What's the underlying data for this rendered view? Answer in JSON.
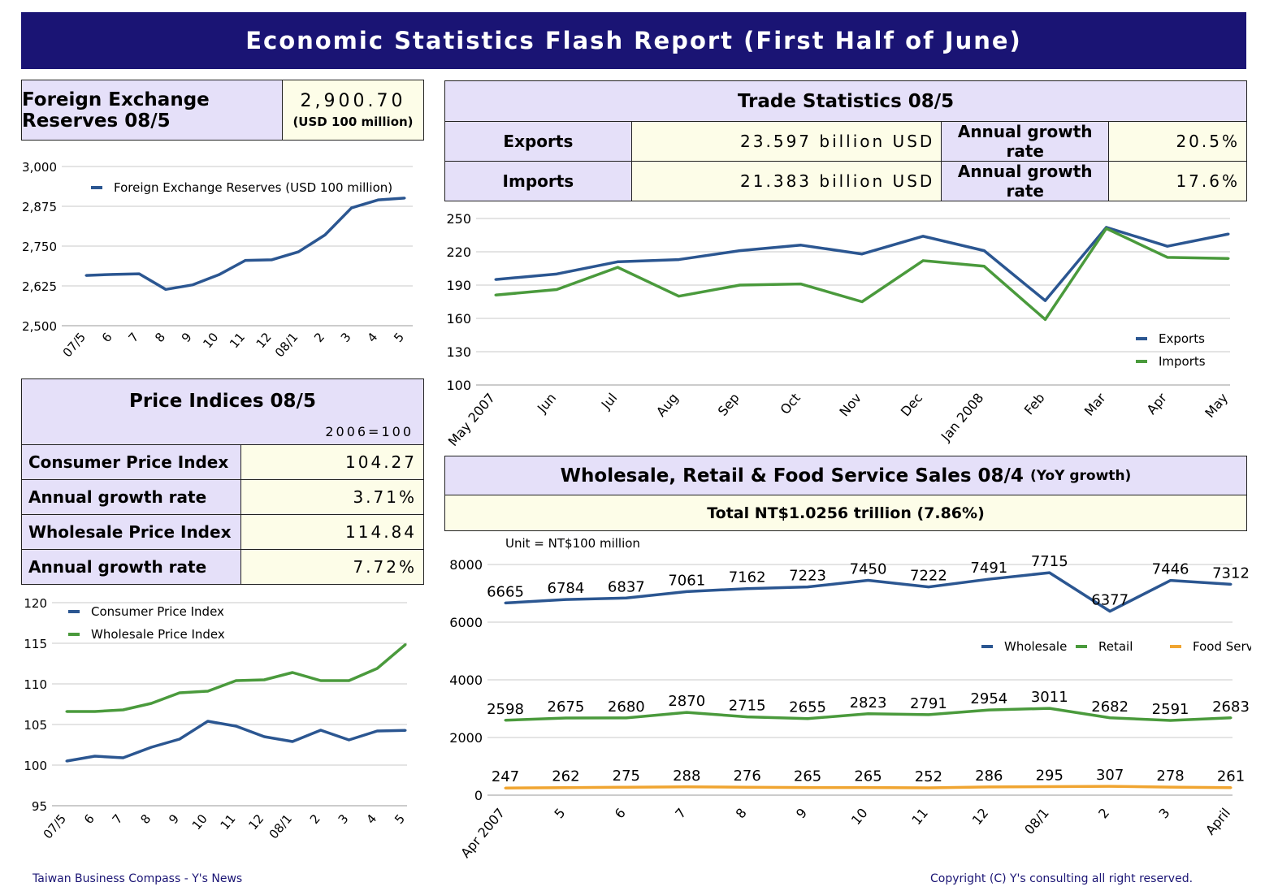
{
  "header": {
    "title": "Economic Statistics Flash Report (First Half of June)"
  },
  "reserves": {
    "title": "Foreign Exchange Reserves 08/5",
    "value": "2,900.70",
    "unit": "(USD 100 million)"
  },
  "trade": {
    "title": "Trade Statistics 08/5",
    "rows": [
      {
        "label": "Exports",
        "value": "23.597 billion USD",
        "rate_label": "Annual growth rate",
        "rate": "20.5%"
      },
      {
        "label": "Imports",
        "value": "21.383 billion USD",
        "rate_label": "Annual growth rate",
        "rate": "17.6%"
      }
    ]
  },
  "prices": {
    "title": "Price Indices 08/5",
    "base": "2006=100",
    "rows": [
      {
        "label": "Consumer Price Index",
        "value": "104.27"
      },
      {
        "label": "Annual growth rate",
        "value": "3.71%"
      },
      {
        "label": "Wholesale Price Index",
        "value": "114.84"
      },
      {
        "label": "Annual growth rate",
        "value": "7.72%"
      }
    ]
  },
  "sales": {
    "title": "Wholesale, Retail & Food Service Sales 08/4",
    "title_note": "(YoY growth)",
    "total": "Total NT$1.0256 trillion (7.86%)",
    "unit_label": "Unit = NT$100 million"
  },
  "footer": {
    "left": "Taiwan Business Compass - Y's News",
    "right": "Copyright (C) Y's consulting all right reserved."
  },
  "colors": {
    "blue": "#2b5691",
    "green": "#4a9a3c",
    "orange": "#f0a531",
    "header": "#1a1474",
    "lavender": "#e5e0f9",
    "cream": "#fdfde8"
  },
  "chart_data": [
    {
      "id": "reserves",
      "type": "line",
      "x": [
        "07/5",
        "6",
        "7",
        "8",
        "9",
        "10",
        "11",
        "12",
        "08/1",
        "2",
        "3",
        "4",
        "5"
      ],
      "series": [
        {
          "name": "Foreign Exchange Reserves (USD 100 million)",
          "color": "#2b5691",
          "values": [
            2658,
            2661,
            2663,
            2614,
            2628,
            2660,
            2705,
            2707,
            2732,
            2785,
            2870,
            2895,
            2900.7
          ]
        }
      ],
      "ylim": [
        2500,
        3000
      ],
      "yticks": [
        "2,500",
        "2,625",
        "2,750",
        "2,875",
        "3,000"
      ],
      "legend": "top-left",
      "grid": true
    },
    {
      "id": "trade",
      "type": "line",
      "x": [
        "May 2007",
        "Jun",
        "Jul",
        "Aug",
        "Sep",
        "Oct",
        "Nov",
        "Dec",
        "Jan 2008",
        "Feb",
        "Mar",
        "Apr",
        "May"
      ],
      "series": [
        {
          "name": "Exports",
          "color": "#2b5691",
          "values": [
            195,
            200,
            211,
            213,
            221,
            226,
            218,
            234,
            221,
            176,
            242,
            225,
            236
          ]
        },
        {
          "name": "Imports",
          "color": "#4a9a3c",
          "values": [
            181,
            186,
            206,
            180,
            190,
            191,
            175,
            212,
            207,
            159,
            241,
            215,
            214
          ]
        }
      ],
      "ylim": [
        100,
        250
      ],
      "yticks": [
        "100",
        "130",
        "160",
        "190",
        "220",
        "250"
      ],
      "legend": "bottom-right",
      "grid": true
    },
    {
      "id": "prices",
      "type": "line",
      "x": [
        "07/5",
        "6",
        "7",
        "8",
        "9",
        "10",
        "11",
        "12",
        "08/1",
        "2",
        "3",
        "4",
        "5"
      ],
      "series": [
        {
          "name": "Consumer Price Index",
          "color": "#2b5691",
          "values": [
            100.5,
            101.1,
            100.9,
            102.2,
            103.2,
            105.4,
            104.8,
            103.5,
            102.9,
            104.3,
            103.1,
            104.2,
            104.27
          ]
        },
        {
          "name": "Wholesale Price Index",
          "color": "#4a9a3c",
          "values": [
            106.6,
            106.6,
            106.8,
            107.6,
            108.9,
            109.1,
            110.4,
            110.5,
            111.4,
            110.4,
            110.4,
            111.9,
            114.84
          ]
        }
      ],
      "ylim": [
        95,
        120
      ],
      "yticks": [
        "95",
        "100",
        "105",
        "110",
        "115",
        "120"
      ],
      "legend": "top-left",
      "grid": true
    },
    {
      "id": "sales",
      "type": "line",
      "x": [
        "Apr 2007",
        "5",
        "6",
        "7",
        "8",
        "9",
        "10",
        "11",
        "12",
        "08/1",
        "2",
        "3",
        "April"
      ],
      "series": [
        {
          "name": "Wholesale",
          "color": "#2b5691",
          "values": [
            6665,
            6784,
            6837,
            7061,
            7162,
            7223,
            7450,
            7222,
            7491,
            7715,
            6377,
            7446,
            7312
          ]
        },
        {
          "name": "Retail",
          "color": "#4a9a3c",
          "values": [
            2598,
            2675,
            2680,
            2870,
            2715,
            2655,
            2823,
            2791,
            2954,
            3011,
            2682,
            2591,
            2683
          ]
        },
        {
          "name": "Food Service",
          "color": "#f0a531",
          "values": [
            247,
            262,
            275,
            288,
            276,
            265,
            265,
            252,
            286,
            295,
            307,
            278,
            261
          ]
        }
      ],
      "ylim": [
        0,
        8000
      ],
      "yticks": [
        "0",
        "2000",
        "4000",
        "6000",
        "8000"
      ],
      "legend": "right",
      "grid": true,
      "data_labels": true
    }
  ]
}
